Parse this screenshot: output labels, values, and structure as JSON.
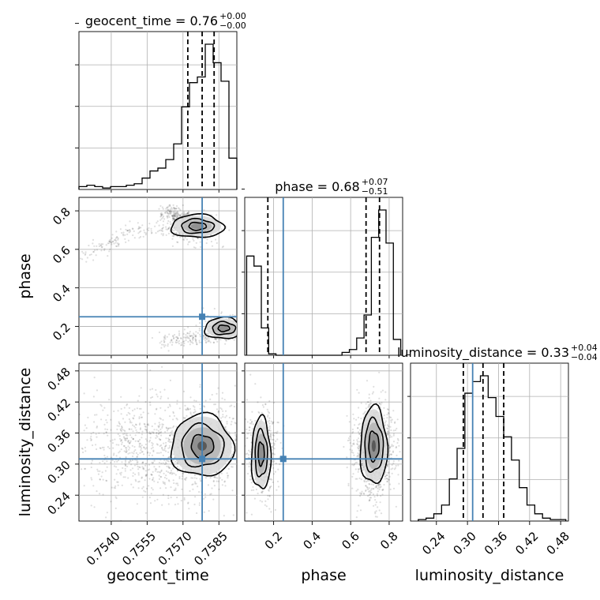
{
  "colors": {
    "truth": "#4682b4",
    "lines": "#000000",
    "grid": "#b0b0b0",
    "background": "#ffffff"
  },
  "chart_data": {
    "type": "corner",
    "parameters": [
      "geocent_time",
      "phase",
      "luminosity_distance"
    ],
    "titles": [
      {
        "param": "geocent_time",
        "text": "geocent_time = 0.76",
        "sup": "+0.00",
        "sub": "−0.00"
      },
      {
        "param": "phase",
        "text": "phase = 0.68",
        "sup": "+0.07",
        "sub": "−0.51"
      },
      {
        "param": "luminosity_distance",
        "text": "luminosity_distance = 0.33",
        "sup": "+0.04",
        "sub": "−0.04"
      }
    ],
    "axis_labels": {
      "x": [
        "geocent_time",
        "phase",
        "luminosity_distance"
      ],
      "y": [
        "",
        "phase",
        "luminosity_distance"
      ]
    },
    "ranges": {
      "geocent_time": [
        0.75265,
        0.75925
      ],
      "phase": [
        0.05,
        0.87
      ],
      "luminosity_distance": [
        0.19,
        0.495
      ]
    },
    "ticks": {
      "geocent_time": {
        "values": [
          0.754,
          0.7555,
          0.757,
          0.7585
        ],
        "labels": [
          "0.7540",
          "0.7555",
          "0.7570",
          "0.7585"
        ]
      },
      "phase": {
        "values": [
          0.2,
          0.4,
          0.6,
          0.8
        ],
        "labels": [
          "0.2",
          "0.4",
          "0.6",
          "0.8"
        ]
      },
      "luminosity_distance": {
        "values": [
          0.24,
          0.3,
          0.36,
          0.42,
          0.48
        ],
        "labels": [
          "0.24",
          "0.30",
          "0.36",
          "0.42",
          "0.48"
        ]
      }
    },
    "truth": {
      "geocent_time": 0.7578,
      "phase": 0.25,
      "luminosity_distance": 0.31
    },
    "quantiles": {
      "geocent_time": [
        0.7572,
        0.7578,
        0.7583
      ],
      "phase": [
        0.17,
        0.68,
        0.75
      ],
      "luminosity_distance": [
        0.292,
        0.33,
        0.37
      ]
    },
    "histograms": {
      "geocent_time": [
        2,
        3,
        2,
        1,
        2,
        2,
        3,
        4,
        8,
        13,
        15,
        21,
        32,
        58,
        75,
        79,
        102,
        89,
        76,
        22
      ],
      "phase": [
        69,
        62,
        19,
        1,
        0,
        0,
        0,
        0,
        0,
        0,
        0,
        0,
        0,
        2,
        4,
        12,
        28,
        82,
        101,
        78,
        11
      ],
      "luminosity_distance": [
        1,
        2,
        5,
        11,
        29,
        50,
        88,
        96,
        100,
        85,
        72,
        58,
        42,
        23,
        11,
        5,
        2,
        1,
        1
      ]
    },
    "grid": true
  }
}
